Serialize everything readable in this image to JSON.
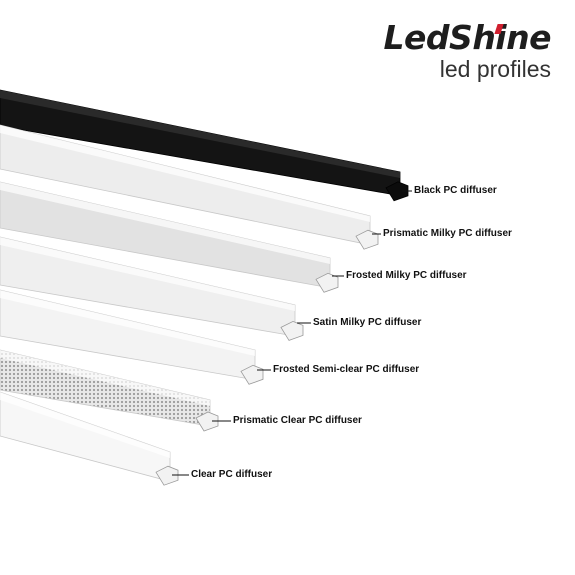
{
  "brand": {
    "name": "LedShine",
    "tagline": "led profiles",
    "accent_color": "#d01f2f"
  },
  "diffusers": [
    {
      "label": "Black PC diffuser",
      "color": "#141414"
    },
    {
      "label": "Prismatic Milky PC diffuser",
      "color": "#ededed"
    },
    {
      "label": "Frosted Milky PC diffuser",
      "color": "#e2e2e2"
    },
    {
      "label": "Satin Milky PC diffuser",
      "color": "#efefef"
    },
    {
      "label": "Frosted Semi-clear PC diffuser",
      "color": "#f3f3f3"
    },
    {
      "label": "Prismatic Clear PC diffuser",
      "color": "#dcdcdc"
    },
    {
      "label": "Clear PC diffuser",
      "color": "#f7f7f7"
    }
  ]
}
